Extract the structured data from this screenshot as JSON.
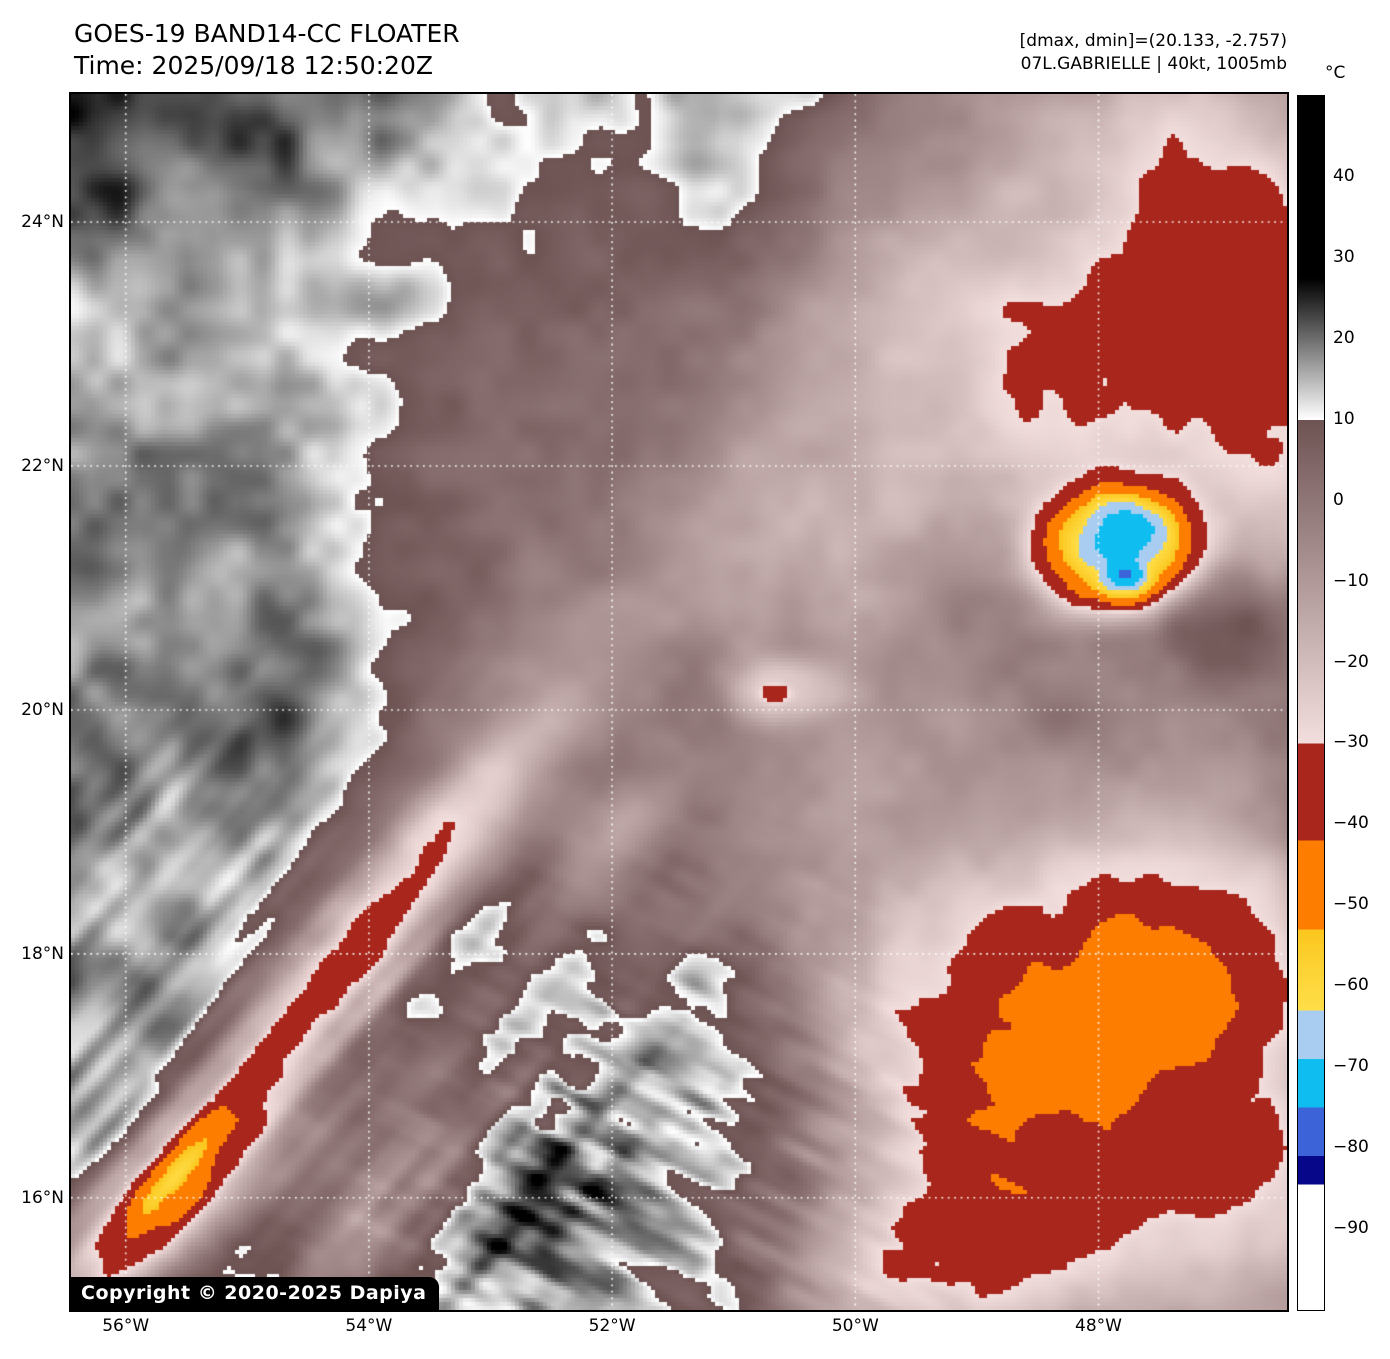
{
  "header": {
    "title": "GOES-19 BAND14-CC FLOATER",
    "time_line": "Time: 2025/09/18 12:50:20Z",
    "dmax_dmin": "[dmax, dmin]=(20.133, -2.757)",
    "storm_info": "07L.GABRIELLE | 40kt, 1005mb"
  },
  "map": {
    "copyright": "Copyright © 2020-2025 Dapiya",
    "grid_color": "#ffffff",
    "y_ticks": [
      {
        "label": "24°N",
        "lat": 24
      },
      {
        "label": "22°N",
        "lat": 22
      },
      {
        "label": "20°N",
        "lat": 20
      },
      {
        "label": "18°N",
        "lat": 18
      },
      {
        "label": "16°N",
        "lat": 16
      }
    ],
    "x_ticks": [
      {
        "label": "56°W",
        "lon": -56
      },
      {
        "label": "54°W",
        "lon": -54
      },
      {
        "label": "52°W",
        "lon": -52
      },
      {
        "label": "50°W",
        "lon": -50
      },
      {
        "label": "48°W",
        "lon": -48
      }
    ]
  },
  "colorbar": {
    "unit": "°C",
    "t_max": 50,
    "t_min": -100,
    "ticks": [
      {
        "label": "40",
        "value": 40
      },
      {
        "label": "30",
        "value": 30
      },
      {
        "label": "20",
        "value": 20
      },
      {
        "label": "10",
        "value": 10
      },
      {
        "label": "0",
        "value": 0
      },
      {
        "label": "−10",
        "value": -10
      },
      {
        "label": "−20",
        "value": -20
      },
      {
        "label": "−30",
        "value": -30
      },
      {
        "label": "−40",
        "value": -40
      },
      {
        "label": "−50",
        "value": -50
      },
      {
        "label": "−60",
        "value": -60
      },
      {
        "label": "−70",
        "value": -70
      },
      {
        "label": "−80",
        "value": -80
      },
      {
        "label": "−90",
        "value": -90
      }
    ],
    "segments": [
      {
        "t_from": 50,
        "t_to": 27.5,
        "c_from": "#000000",
        "c_to": "#000000"
      },
      {
        "t_from": 27.5,
        "t_to": 10,
        "c_from": "#000000",
        "c_to": "#ffffff"
      },
      {
        "t_from": 10,
        "t_to": -30,
        "c_from": "#6e5353",
        "c_to": "#f3dede"
      },
      {
        "t_from": -30,
        "t_to": -42,
        "c_from": "#a8261b",
        "c_to": "#a8261b"
      },
      {
        "t_from": -42,
        "t_to": -53,
        "c_from": "#fd7d00",
        "c_to": "#fd7d00"
      },
      {
        "t_from": -53,
        "t_to": -63,
        "c_from": "#fbc61d",
        "c_to": "#ffde48",
        "c_mid": "#fdd335"
      },
      {
        "t_from": -63,
        "t_to": -69,
        "c_from": "#a9cdf0",
        "c_to": "#a9cdf0"
      },
      {
        "t_from": -69,
        "t_to": -75,
        "c_from": "#0fbdf0",
        "c_to": "#0fbdf0"
      },
      {
        "t_from": -75,
        "t_to": -81,
        "c_from": "#3c63d8",
        "c_to": "#3c63d8"
      },
      {
        "t_from": -81,
        "t_to": -84.5,
        "c_from": "#070789",
        "c_to": "#070789"
      },
      {
        "t_from": -84.5,
        "t_to": -100,
        "c_from": "#ffffff",
        "c_to": "#ffffff"
      }
    ]
  }
}
